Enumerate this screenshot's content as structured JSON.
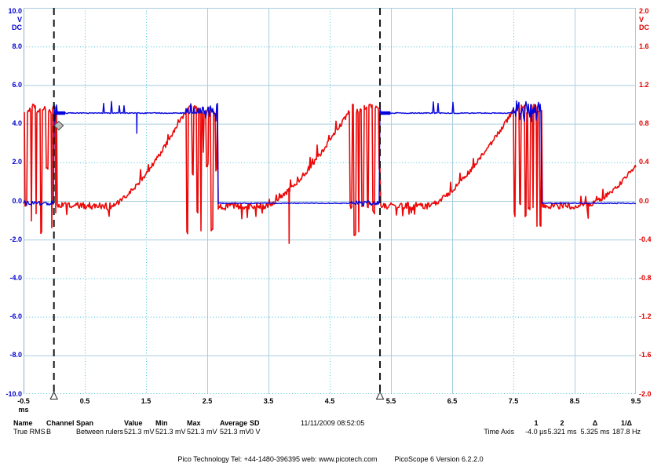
{
  "measurements": {
    "name": {
      "label": "Name",
      "value": "True RMS"
    },
    "channel": {
      "label": "Channel",
      "value": "B"
    },
    "span": {
      "label": "Span",
      "value": "Between rulers"
    },
    "value": {
      "label": "Value",
      "value": "521.3 mV"
    },
    "min": {
      "label": "Min",
      "value": "521.3 mV"
    },
    "max": {
      "label": "Max",
      "value": "521.3 mV"
    },
    "average": {
      "label": "Average",
      "value": "521.3 mV"
    },
    "sd": {
      "label": "SD",
      "value": "0 V"
    },
    "timestamp": "11/11/2009 08:52:05"
  },
  "time_axis": {
    "label": "Time Axis",
    "ruler1": {
      "label": "1",
      "value": "-4.0 µs"
    },
    "ruler2": {
      "label": "2",
      "value": "5.321 ms"
    },
    "delta": {
      "label": "Δ",
      "value": "5.325 ms"
    },
    "inv_delta": {
      "label": "1/Δ",
      "value": "187.8 Hz"
    }
  },
  "footer": {
    "contact": "Pico Technology Tel: +44-1480-396395   web: www.picotech.com",
    "version": "PicoScope 6 Version 6.2.2.0"
  },
  "chart_data": {
    "type": "line",
    "x_axis": {
      "unit": "ms",
      "min": -0.5,
      "max": 9.5,
      "step": 1,
      "tick_labels": [
        "-0.5",
        "0.5",
        "1.5",
        "2.5",
        "3.5",
        "4.5",
        "5.5",
        "6.5",
        "7.5",
        "8.5",
        "9.5"
      ]
    },
    "y_axis_left": {
      "unit": "V",
      "coupling": "DC",
      "min": -10,
      "max": 10,
      "step": 2,
      "color": "#0000cd",
      "tick_labels": [
        "10.0",
        "8.0",
        "6.0",
        "4.0",
        "2.0",
        "0.0",
        "-2.0",
        "-4.0",
        "-6.0",
        "-8.0",
        "-10.0"
      ]
    },
    "y_axis_right": {
      "unit": "V",
      "coupling": "DC",
      "min": -2,
      "max": 2,
      "step": 0.4,
      "color": "#dd0000",
      "tick_labels": [
        "2.0",
        "1.6",
        "1.2",
        "0.8",
        "0.4",
        "0.0",
        "-0.4",
        "-0.8",
        "-1.2",
        "-1.6",
        "-2.0"
      ]
    },
    "grid": {
      "v_dotted_idx": [
        1,
        2,
        5,
        8
      ],
      "h_dotted_idx": [
        1,
        4,
        7,
        8,
        10
      ],
      "solid_color": "#a8cede",
      "dotted_color": "#44c5db",
      "border_left_color": "#8cb4c8"
    },
    "rulers": {
      "r1_ms": -0.004,
      "r2_ms": 5.321,
      "delta_ms": 5.325,
      "freq_hz": 187.8
    },
    "trigger_marker": {
      "t_ms": 0.05,
      "level_v_left": 3.9
    },
    "series": [
      {
        "name": "channel-a",
        "color": "#ec0808",
        "axis": "right",
        "levels": {
          "flat": -0.05,
          "peak": 0.93,
          "burst_top": 0.94,
          "burst_low_min": -0.35
        },
        "segments": [
          {
            "type": "burst",
            "t0": -0.5,
            "t1": 0.05
          },
          {
            "type": "flat",
            "t0": 0.05,
            "t1": 0.94
          },
          {
            "type": "ramp",
            "t0": 0.94,
            "t1": 2.15,
            "v1": 0.93
          },
          {
            "type": "burst",
            "t0": 2.15,
            "t1": 2.67
          },
          {
            "type": "flat",
            "t0": 2.67,
            "t1": 3.46
          },
          {
            "type": "ramp",
            "t0": 3.46,
            "t1": 4.82,
            "v1": 0.93
          },
          {
            "type": "burst",
            "t0": 4.82,
            "t1": 5.33
          },
          {
            "type": "flat",
            "t0": 5.33,
            "t1": 6.12
          },
          {
            "type": "ramp",
            "t0": 6.12,
            "t1": 7.49,
            "v1": 0.93
          },
          {
            "type": "burst",
            "t0": 7.49,
            "t1": 7.97
          },
          {
            "type": "flat",
            "t0": 7.97,
            "t1": 8.6
          },
          {
            "type": "ramp",
            "t0": 8.6,
            "t1": 9.5,
            "v1": 0.37,
            "exp": 1.8
          }
        ],
        "spikes": [
          {
            "t": 3.83,
            "v": -0.44
          },
          {
            "t": 8.72,
            "v": -0.18
          }
        ]
      },
      {
        "name": "channel-b",
        "color": "#0404dd",
        "axis": "left",
        "low": -0.12,
        "high": 4.55,
        "high_intervals": [
          [
            0.0,
            2.67
          ],
          [
            5.31,
            7.96
          ]
        ],
        "noise_ticks": [
          0.81,
          0.94,
          1.06,
          1.14,
          6.19,
          6.27,
          6.51
        ],
        "down_spike": {
          "t": 1.34,
          "v": 3.5
        },
        "thick_segments": [
          [
            0.0,
            0.18
          ],
          [
            5.31,
            5.49
          ]
        ]
      }
    ]
  }
}
